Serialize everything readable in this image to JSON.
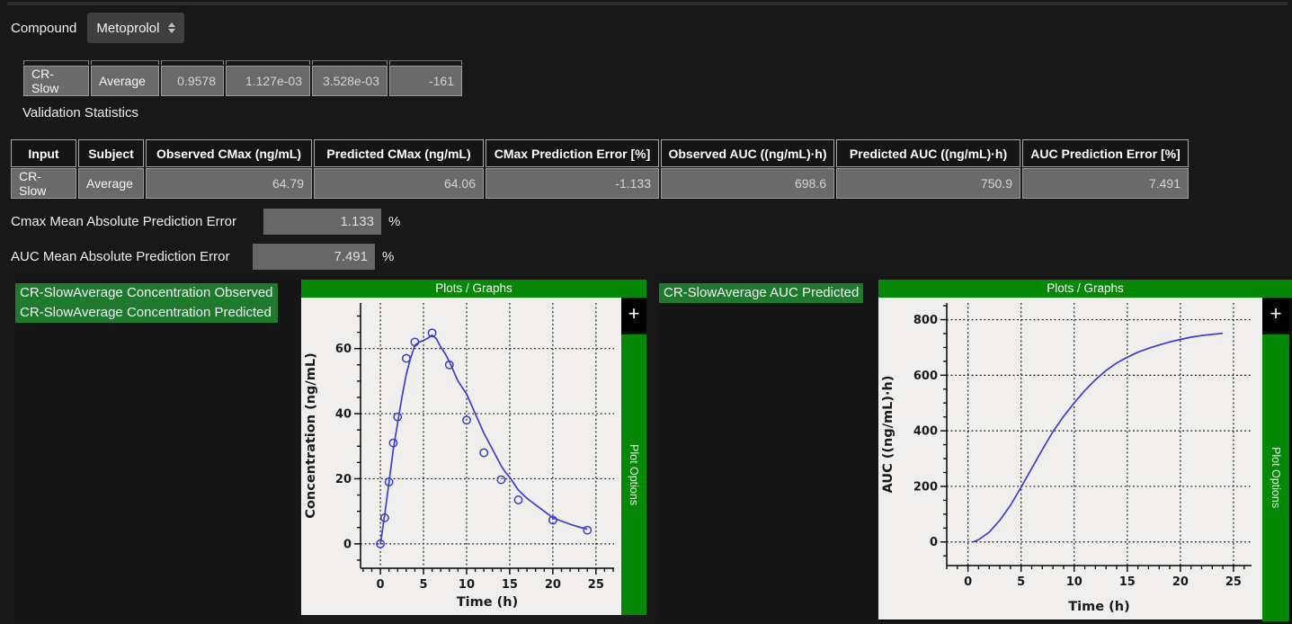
{
  "header": {
    "compound_label": "Compound",
    "compound_value": "Metoprolol"
  },
  "param_table": {
    "rows": [
      [
        "CR-Slow",
        "Average",
        "0.9578",
        "1.127e-03",
        "3.528e-03",
        "-161"
      ]
    ]
  },
  "validation": {
    "title": "Validation Statistics",
    "columns": [
      "Input",
      "Subject",
      "Observed CMax (ng/mL)",
      "Predicted CMax (ng/mL)",
      "CMax Prediction Error [%]",
      "Observed AUC ((ng/mL)·h)",
      "Predicted AUC ((ng/mL)·h)",
      "AUC Prediction Error [%]"
    ],
    "rows": [
      [
        "CR-Slow",
        "Average",
        "64.79",
        "64.06",
        "-1.133",
        "698.6",
        "750.9",
        "7.491"
      ]
    ]
  },
  "errors": {
    "cmax_label": "Cmax Mean Absolute Prediction Error",
    "cmax_value": "1.133",
    "cmax_unit": "%",
    "auc_label": "AUC Mean Absolute Prediction Error",
    "auc_value": "7.491",
    "auc_unit": "%"
  },
  "series_labels": {
    "left": [
      "CR-SlowAverage Concentration Observed",
      "CR-SlowAverage Concentration Predicted"
    ],
    "right": [
      "CR-SlowAverage AUC Predicted"
    ]
  },
  "plot_panel": {
    "header": "Plots / Graphs",
    "plus_label": "+",
    "options_label": "Plot Options"
  },
  "colors": {
    "header_green": "#058805",
    "label_green": "#1f7a2e",
    "line_blue": "#3a3fcf",
    "cell_gray": "#6a6a6a",
    "plot_bg": "#f0efed"
  },
  "chart_data": [
    {
      "type": "scatter",
      "title": "",
      "xlabel": "Time (h)",
      "ylabel": "Concentration (ng/mL)",
      "xlim": [
        -2.3,
        27.1
      ],
      "ylim": [
        -7.5,
        74
      ],
      "xticks": [
        0,
        5,
        10,
        15,
        20,
        25
      ],
      "yticks": [
        0,
        20,
        40,
        60
      ],
      "xminor": 1,
      "yminor": 5,
      "grid": true,
      "legend": "none",
      "series": [
        {
          "name": "CR-SlowAverage Concentration Observed",
          "type": "scatter",
          "x": [
            0,
            0.5,
            1,
            1.5,
            2,
            3,
            4,
            6,
            8,
            10,
            12,
            14,
            16,
            20,
            24
          ],
          "y": [
            0,
            8,
            19,
            31,
            39,
            57,
            62,
            64.8,
            55,
            38,
            28,
            19.7,
            13.5,
            7.3,
            4.2
          ]
        },
        {
          "name": "CR-SlowAverage Concentration Predicted",
          "type": "line",
          "x": [
            0,
            0.5,
            1,
            1.5,
            2,
            2.5,
            3,
            3.5,
            4,
            4.5,
            5,
            5.5,
            6,
            6.5,
            7,
            7.5,
            8,
            8.5,
            9,
            9.5,
            10,
            10.5,
            11,
            11.5,
            12,
            12.5,
            13,
            13.5,
            14,
            14.5,
            15,
            15.5,
            16,
            17,
            18,
            19,
            20,
            21,
            22,
            23,
            24
          ],
          "y": [
            0,
            9,
            19,
            29,
            37,
            45,
            52,
            57,
            61,
            62,
            62.5,
            63.2,
            64.1,
            63,
            60.5,
            58.5,
            56,
            53,
            50,
            48,
            46,
            43,
            40,
            37,
            34,
            31.5,
            29,
            26.5,
            24,
            22,
            20.5,
            18.5,
            16.5,
            14,
            12,
            10,
            8,
            7,
            6,
            5.2,
            4.5
          ]
        }
      ]
    },
    {
      "type": "line",
      "title": "",
      "xlabel": "Time (h)",
      "ylabel": "AUC ((ng/mL)·h)",
      "xlim": [
        -2.0,
        26.7
      ],
      "ylim": [
        -85,
        860
      ],
      "xticks": [
        0,
        5,
        10,
        15,
        20,
        25
      ],
      "yticks": [
        0,
        200,
        400,
        600,
        800
      ],
      "xminor": 1,
      "yminor": 50,
      "grid": true,
      "legend": "none",
      "series": [
        {
          "name": "CR-SlowAverage AUC Predicted",
          "type": "line",
          "x": [
            0.5,
            1,
            2,
            3,
            4,
            5,
            6,
            7,
            8,
            9,
            10,
            11,
            12,
            13,
            14,
            15,
            16,
            17,
            18,
            19,
            20,
            21,
            22,
            23,
            24
          ],
          "y": [
            0,
            8,
            35,
            78,
            132,
            197,
            265,
            332,
            397,
            452,
            500,
            545,
            584,
            617,
            644,
            665,
            683,
            697,
            709,
            720,
            729,
            737,
            743,
            747,
            750.9
          ]
        }
      ]
    }
  ]
}
